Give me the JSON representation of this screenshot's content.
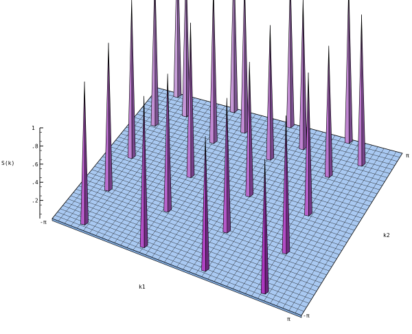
{
  "chart_data": {
    "type": "surface3d",
    "zlabel": "S(k)",
    "xlabel": "k1",
    "ylabel": "k2",
    "zlim": [
      0,
      1
    ],
    "z_ticks": [
      "1",
      ".8",
      ".6",
      ".4",
      ".2"
    ],
    "x_ticks": [
      "-π",
      "π"
    ],
    "y_ticks": [
      "-π",
      "π"
    ],
    "mesh_size": 40,
    "surface_color": "#a9c9f2",
    "peak_color_front": "#a92bbd",
    "peak_color_back": "#c8a3d9",
    "peaks": [
      {
        "k1": -2.45,
        "k2": -2.85,
        "s": 0.85
      },
      {
        "k1": -0.95,
        "k2": -2.85,
        "s": 0.9
      },
      {
        "k1": 0.6,
        "k2": -2.85,
        "s": 0.8
      },
      {
        "k1": 2.1,
        "k2": -2.85,
        "s": 0.8
      },
      {
        "k1": -2.5,
        "k2": -1.3,
        "s": 0.88
      },
      {
        "k1": -1.0,
        "k2": -1.3,
        "s": 0.82
      },
      {
        "k1": 0.5,
        "k2": -1.3,
        "s": 0.8
      },
      {
        "k1": 2.0,
        "k2": -1.3,
        "s": 0.82
      },
      {
        "k1": -2.55,
        "k2": 0.2,
        "s": 0.95
      },
      {
        "k1": -1.05,
        "k2": 0.2,
        "s": 0.92
      },
      {
        "k1": 0.45,
        "k2": 0.2,
        "s": 0.8
      },
      {
        "k1": 1.95,
        "k2": 0.2,
        "s": 0.85
      },
      {
        "k1": -2.6,
        "k2": 1.7,
        "s": 0.92
      },
      {
        "k1": -1.1,
        "k2": 1.7,
        "s": 0.94
      },
      {
        "k1": 0.35,
        "k2": 1.7,
        "s": 0.8
      },
      {
        "k1": 1.85,
        "k2": 1.7,
        "s": 0.78
      },
      {
        "k1": -2.6,
        "k2": 3.05,
        "s": 0.95
      },
      {
        "k1": -1.15,
        "k2": 3.05,
        "s": 0.95
      },
      {
        "k1": 0.3,
        "k2": 3.05,
        "s": 0.9
      },
      {
        "k1": 1.8,
        "k2": 3.05,
        "s": 0.95
      },
      {
        "k1": -2.1,
        "k2": 2.4,
        "s": 0.93
      },
      {
        "k1": -0.6,
        "k2": 2.4,
        "s": 0.92
      },
      {
        "k1": 0.9,
        "k2": 2.4,
        "s": 0.9
      },
      {
        "k1": 2.4,
        "k2": 2.4,
        "s": 0.9
      }
    ]
  }
}
